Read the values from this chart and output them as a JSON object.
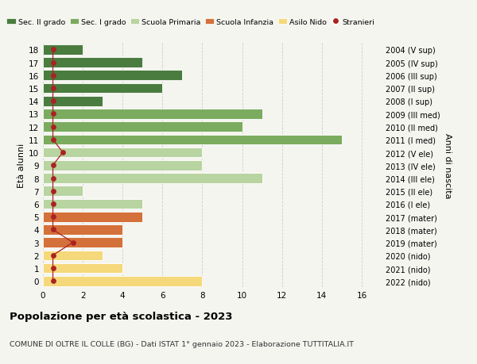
{
  "ages": [
    18,
    17,
    16,
    15,
    14,
    13,
    12,
    11,
    10,
    9,
    8,
    7,
    6,
    5,
    4,
    3,
    2,
    1,
    0
  ],
  "right_labels": [
    "2004 (V sup)",
    "2005 (IV sup)",
    "2006 (III sup)",
    "2007 (II sup)",
    "2008 (I sup)",
    "2009 (III med)",
    "2010 (II med)",
    "2011 (I med)",
    "2012 (V ele)",
    "2013 (IV ele)",
    "2014 (III ele)",
    "2015 (II ele)",
    "2016 (I ele)",
    "2017 (mater)",
    "2018 (mater)",
    "2019 (mater)",
    "2020 (nido)",
    "2021 (nido)",
    "2022 (nido)"
  ],
  "values": [
    2,
    5,
    7,
    6,
    3,
    11,
    10,
    15,
    8,
    8,
    11,
    2,
    5,
    5,
    4,
    4,
    3,
    4,
    8
  ],
  "bar_colors": [
    "#4a7c3f",
    "#4a7c3f",
    "#4a7c3f",
    "#4a7c3f",
    "#4a7c3f",
    "#7aab5e",
    "#7aab5e",
    "#7aab5e",
    "#b8d4a0",
    "#b8d4a0",
    "#b8d4a0",
    "#b8d4a0",
    "#b8d4a0",
    "#d4703a",
    "#d4703a",
    "#d4703a",
    "#f5d87a",
    "#f5d87a",
    "#f5d87a"
  ],
  "stranieri_x": [
    0.5,
    0.5,
    0.5,
    0.5,
    0.5,
    0.5,
    0.5,
    0.5,
    1.0,
    0.5,
    0.5,
    0.5,
    0.5,
    0.5,
    0.5,
    1.5,
    0.5,
    0.5,
    0.5
  ],
  "stranieri_color": "#aa2222",
  "legend_labels": [
    "Sec. II grado",
    "Sec. I grado",
    "Scuola Primaria",
    "Scuola Infanzia",
    "Asilo Nido",
    "Stranieri"
  ],
  "legend_colors": [
    "#4a7c3f",
    "#7aab5e",
    "#b8d4a0",
    "#d4703a",
    "#f5d87a",
    "#aa2222"
  ],
  "title": "Popolazione per età scolastica - 2023",
  "subtitle": "COMUNE DI OLTRE IL COLLE (BG) - Dati ISTAT 1° gennaio 2023 - Elaborazione TUTTITALIA.IT",
  "ylabel_left": "Età alunni",
  "ylabel_right": "Anni di nascita",
  "xlim": [
    0,
    17
  ],
  "ylim_min": -0.5,
  "ylim_max": 18.5,
  "background_color": "#f5f5f0",
  "grid_color": "#cccccc"
}
